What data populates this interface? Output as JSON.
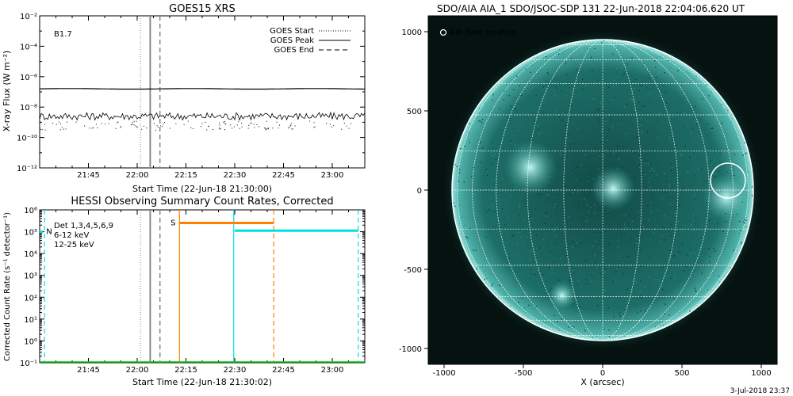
{
  "colors": {
    "goes_high": "#000000",
    "goes_low": "#000000",
    "det_label": "#000000",
    "band_6_12": "#cc00cc",
    "band_12_25": "#00cc00",
    "s_segment": "#ff8000",
    "n_segment": "#00e0e0",
    "cyan_marker": "#00e0e0",
    "aia_background": "#051210",
    "aia_disk": "#1a6e68",
    "aia_grid": "#ffffff",
    "aia_label": "#ffffff",
    "goes_marker": "#888888"
  },
  "chart_data": [
    {
      "type": "line",
      "title": "GOES15 XRS",
      "xlabel": "Start Time (22-Jun-18 21:30:00)",
      "ylabel": "X-ray Flux (W m⁻²)",
      "x_unit": "minutes after 21:30:00",
      "xlim": [
        0,
        100
      ],
      "ylim_log10": [
        -12,
        -2
      ],
      "y_scale": "log",
      "x_ticks": [
        {
          "x": 15,
          "label": "21:45"
        },
        {
          "x": 30,
          "label": "22:00"
        },
        {
          "x": 45,
          "label": "22:15"
        },
        {
          "x": 60,
          "label": "22:30"
        },
        {
          "x": 75,
          "label": "22:45"
        },
        {
          "x": 90,
          "label": "23:00"
        }
      ],
      "y_tick_labels": [
        "10⁻¹²",
        "10⁻¹⁰",
        "10⁻⁸",
        "10⁻⁶",
        "10⁻⁴",
        "10⁻²"
      ],
      "annotation": "B1.7",
      "legend": {
        "placement": "top-right",
        "entries": [
          {
            "label": "GOES Start",
            "style": "dotted"
          },
          {
            "label": "GOES Peak",
            "style": "solid"
          },
          {
            "label": "GOES End",
            "style": "dashed"
          }
        ]
      },
      "markers": {
        "start": 31,
        "peak": 34,
        "end": 37
      },
      "series": [
        {
          "name": "",
          "log10_flux_level": -6.8,
          "band": "1-8 Å"
        },
        {
          "name": "",
          "log10_flux_level": -8.6,
          "band": "0.5-4 Å",
          "noisy": true
        }
      ]
    },
    {
      "type": "line",
      "title": "HESSI Observing Summary Count Rates, Corrected",
      "xlabel": "Start Time (22-Jun-18 21:30:02)",
      "ylabel": "Corrected Count Rate (s⁻¹ detector⁻¹)",
      "x_unit": "minutes after 21:30:02",
      "xlim": [
        0,
        100
      ],
      "ylim_log10": [
        -1,
        6
      ],
      "y_scale": "log",
      "x_ticks": [
        {
          "x": 15,
          "label": "21:45"
        },
        {
          "x": 30,
          "label": "22:00"
        },
        {
          "x": 45,
          "label": "22:15"
        },
        {
          "x": 60,
          "label": "22:30"
        },
        {
          "x": 75,
          "label": "22:45"
        },
        {
          "x": 90,
          "label": "23:00"
        }
      ],
      "y_tick_labels": [
        "10⁻¹",
        "10⁰",
        "10¹",
        "10²",
        "10³",
        "10⁴",
        "10⁵",
        "10⁶"
      ],
      "legend": {
        "placement": "top-left",
        "entries": [
          {
            "label": "Det 1,3,4,5,6,9",
            "color_key": "det_label"
          },
          {
            "label": "6-12 keV",
            "color_key": "band_6_12"
          },
          {
            "label": "12-25 keV",
            "color_key": "band_12_25"
          }
        ]
      },
      "flags": [
        {
          "label": "S",
          "color_key": "s_segment",
          "x_start": 43,
          "x_end": 72,
          "log10_level": 5.4
        },
        {
          "label": "N",
          "color_key": "n_segment",
          "x_start": 0,
          "x_end": 1,
          "log10_level": 5.0
        },
        {
          "label": "",
          "color_key": "n_segment",
          "x_start": 60,
          "x_end": 98,
          "log10_level": 5.05
        }
      ],
      "markers": {
        "start": 31,
        "peak": 34,
        "end": 37
      },
      "extra_lines": [
        {
          "x": 43,
          "style": "solid",
          "color_key": "s_segment"
        },
        {
          "x": 72,
          "style": "dashed",
          "color_key": "s_segment"
        },
        {
          "x": 59.7,
          "style": "solid",
          "color_key": "cyan_marker"
        },
        {
          "x": 1.5,
          "style": "dashed",
          "color_key": "cyan_marker"
        },
        {
          "x": 98,
          "style": "dashed",
          "color_key": "cyan_marker"
        }
      ]
    },
    {
      "type": "heatmap",
      "title": "SDO/AIA AIA_1 SDO/JSOC-SDP 131 22-Jun-2018 22:04:06.620 UT",
      "xlabel": "X (arcsec)",
      "ylabel": "",
      "xlim": [
        -1100,
        1100
      ],
      "ylim": [
        -1100,
        1100
      ],
      "x_ticks": [
        -1000,
        -500,
        0,
        500,
        1000
      ],
      "y_ticks": [
        -1000,
        -500,
        0,
        500,
        1000
      ],
      "solar_radius_arcsec": 950,
      "annotation": "AIA flare location",
      "flare_location": {
        "x": 790,
        "y": 60,
        "radius": 110
      },
      "grid": true
    }
  ],
  "footer": {
    "date": "3-Jul-2018 23:37"
  }
}
